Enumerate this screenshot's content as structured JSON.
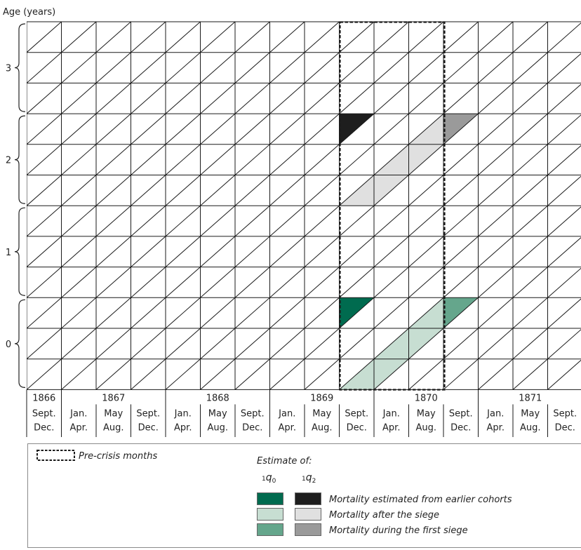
{
  "y_axis_title": "Age (years)",
  "age_labels": [
    "3",
    "2",
    "1",
    "0"
  ],
  "years": [
    {
      "label": "1866"
    },
    {
      "label": "1867"
    },
    {
      "label": "1868"
    },
    {
      "label": "1869"
    },
    {
      "label": "1870"
    },
    {
      "label": "1871"
    }
  ],
  "periods": [
    {
      "top": "Sept.",
      "bottom": "Dec."
    },
    {
      "top": "Jan.",
      "bottom": "Apr."
    },
    {
      "top": "May",
      "bottom": "Aug."
    },
    {
      "top": "Sept.",
      "bottom": "Dec."
    },
    {
      "top": "Jan.",
      "bottom": "Apr."
    },
    {
      "top": "May",
      "bottom": "Aug."
    },
    {
      "top": "Sept.",
      "bottom": "Dec."
    },
    {
      "top": "Jan.",
      "bottom": "Apr."
    },
    {
      "top": "May",
      "bottom": "Aug."
    },
    {
      "top": "Sept.",
      "bottom": "Dec."
    },
    {
      "top": "Jan.",
      "bottom": "Apr."
    },
    {
      "top": "May",
      "bottom": "Aug."
    },
    {
      "top": "Sept.",
      "bottom": "Dec."
    },
    {
      "top": "Jan.",
      "bottom": "Apr."
    },
    {
      "top": "May",
      "bottom": "Aug."
    },
    {
      "top": "Sept.",
      "bottom": "Dec."
    }
  ],
  "legend": {
    "precrisis_label": "Pre-crisis months",
    "estimate_heading": "Estimate of:",
    "q0_label": "q",
    "q0_pre": "1",
    "q0_sub": "0",
    "q2_label": "q",
    "q2_pre": "1",
    "q2_sub": "2",
    "rows": [
      {
        "label": "Mortality estimated from earlier cohorts",
        "color_q0": "#006b4f",
        "color_q2": "#1e1e1e"
      },
      {
        "label": "Mortality after the siege",
        "color_q0": "#c7ded2",
        "color_q2": "#e0e0e0"
      },
      {
        "label": "Mortality during the first siege",
        "color_q0": "#65a68c",
        "color_q2": "#9a9a9a"
      }
    ]
  },
  "colors": {
    "q0_earlier": "#006b4f",
    "q0_after": "#c7ded2",
    "q0_during": "#65a68c",
    "q2_earlier": "#1e1e1e",
    "q2_after": "#e0e0e0",
    "q2_during": "#9a9a9a",
    "grid": "#1a1a1a"
  }
}
